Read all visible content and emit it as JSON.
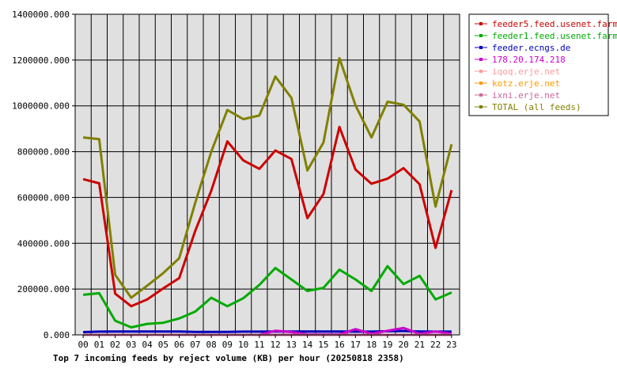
{
  "chart_data": {
    "type": "line",
    "title": "Top 7 incoming feeds by reject volume (KB) per hour (20250818 2358)",
    "xlabel": "",
    "ylabel": "",
    "categories": [
      "00",
      "01",
      "02",
      "03",
      "04",
      "05",
      "06",
      "07",
      "08",
      "09",
      "10",
      "11",
      "12",
      "13",
      "14",
      "15",
      "16",
      "17",
      "18",
      "19",
      "20",
      "21",
      "22",
      "23"
    ],
    "ylim": [
      0,
      1400000
    ],
    "ytick_values": [
      0,
      200000,
      400000,
      600000,
      800000,
      1000000,
      1200000,
      1400000
    ],
    "ytick_labels": [
      "0.000",
      "200000.000",
      "400000.000",
      "600000.000",
      "800000.000",
      "1000000.000",
      "1200000.000",
      "1400000.000"
    ],
    "grid": true,
    "legend_position": "right",
    "background": "#e0e0e0",
    "series": [
      {
        "name": "feeder5.feed.usenet.farm",
        "color": "#cc0000",
        "values": [
          680000,
          662000,
          180000,
          125000,
          155000,
          203000,
          248000,
          455000,
          630000,
          845000,
          762000,
          725000,
          805000,
          768000,
          510000,
          615000,
          908000,
          722000,
          660000,
          682000,
          728000,
          658000,
          380000,
          632000
        ]
      },
      {
        "name": "feeder1.feed.usenet.farm",
        "color": "#00aa00",
        "values": [
          175000,
          182000,
          62000,
          33000,
          48000,
          53000,
          72000,
          102000,
          162000,
          125000,
          160000,
          218000,
          292000,
          242000,
          192000,
          205000,
          285000,
          242000,
          192000,
          300000,
          222000,
          258000,
          155000,
          185000
        ]
      },
      {
        "name": "feeder.ecngs.de",
        "color": "#0000bb",
        "values": [
          12000,
          14000,
          15000,
          15000,
          15000,
          15000,
          15000,
          13000,
          13000,
          13000,
          14000,
          14000,
          15000,
          15000,
          15000,
          15000,
          15000,
          14000,
          14000,
          16000,
          17000,
          15000,
          14000,
          14000
        ]
      },
      {
        "name": "178.20.174.218",
        "color": "#cc00cc",
        "values": [
          0,
          0,
          0,
          0,
          0,
          0,
          0,
          0,
          0,
          0,
          0,
          0,
          18000,
          12000,
          2000,
          2000,
          2000,
          25000,
          5000,
          18000,
          30000,
          5000,
          15000,
          5000
        ]
      },
      {
        "name": "iqoq.erje.net",
        "color": "#ff9999",
        "values": [
          0,
          0,
          0,
          0,
          0,
          0,
          0,
          0,
          0,
          0,
          0,
          0,
          0,
          0,
          0,
          0,
          0,
          0,
          0,
          0,
          0,
          0,
          0,
          0
        ]
      },
      {
        "name": "kotz.erje.net",
        "color": "#ff9900",
        "values": [
          0,
          0,
          0,
          0,
          0,
          0,
          0,
          0,
          0,
          0,
          0,
          0,
          0,
          0,
          0,
          0,
          0,
          0,
          0,
          0,
          0,
          0,
          0,
          0
        ]
      },
      {
        "name": "ixni.erje.net",
        "color": "#cc6699",
        "values": [
          0,
          0,
          0,
          0,
          0,
          0,
          0,
          0,
          0,
          0,
          0,
          0,
          0,
          0,
          0,
          0,
          0,
          0,
          0,
          0,
          0,
          0,
          0,
          0
        ]
      },
      {
        "name": "TOTAL (all feeds)",
        "color": "#808000",
        "values": [
          862000,
          855000,
          262000,
          162000,
          215000,
          270000,
          335000,
          578000,
          800000,
          982000,
          942000,
          958000,
          1128000,
          1035000,
          718000,
          840000,
          1208000,
          1002000,
          862000,
          1018000,
          1005000,
          932000,
          560000,
          832000
        ]
      }
    ]
  }
}
